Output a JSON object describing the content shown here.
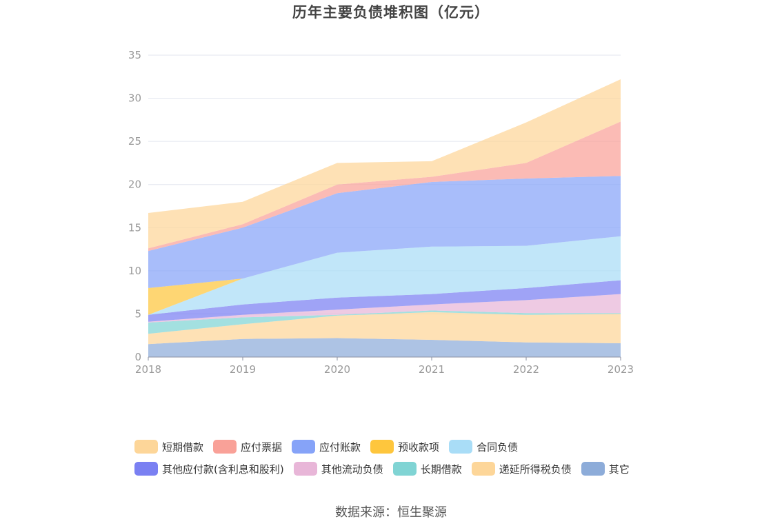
{
  "title": "历年主要负债堆积图（亿元）",
  "source": "数据来源：恒生聚源",
  "chart_data": {
    "type": "area",
    "stacked": true,
    "title": "历年主要负债堆积图（亿元）",
    "x": [
      "2018",
      "2019",
      "2020",
      "2021",
      "2022",
      "2023"
    ],
    "ylim": [
      0,
      35
    ],
    "yticks": [
      "0",
      "5",
      "10",
      "15",
      "20",
      "25",
      "30",
      "35"
    ],
    "grid": true,
    "legend_position": "bottom",
    "series": [
      {
        "name": "其它",
        "color": "#8dacd9",
        "values": [
          1.5,
          2.1,
          2.2,
          2.0,
          1.7,
          1.6
        ]
      },
      {
        "name": "递延所得税负债",
        "color": "#fdd699",
        "values": [
          1.2,
          1.7,
          2.6,
          3.2,
          3.2,
          3.4
        ]
      },
      {
        "name": "长期借款",
        "color": "#80d4d4",
        "values": [
          1.3,
          0.8,
          0.1,
          0.2,
          0.2,
          0.1
        ]
      },
      {
        "name": "其他流动负债",
        "color": "#e8b6d8",
        "values": [
          0.1,
          0.3,
          0.6,
          0.7,
          1.5,
          2.2
        ]
      },
      {
        "name": "其他应付款(含利息和股利)",
        "color": "#7a80f2",
        "values": [
          0.8,
          1.2,
          1.4,
          1.2,
          1.4,
          1.6
        ]
      },
      {
        "name": "合同负债",
        "color": "#a9ddf7",
        "values": [
          0.0,
          3.0,
          5.2,
          5.5,
          4.9,
          5.1
        ]
      },
      {
        "name": "预收款项",
        "color": "#fec63d",
        "values": [
          3.1,
          0.0,
          0.0,
          0.0,
          0.0,
          0.0
        ]
      },
      {
        "name": "应付账款",
        "color": "#86a3f8",
        "values": [
          4.3,
          5.9,
          6.9,
          7.5,
          7.8,
          7.0
        ]
      },
      {
        "name": "应付票据",
        "color": "#f9a198",
        "values": [
          0.3,
          0.4,
          1.0,
          0.6,
          1.8,
          6.3
        ]
      },
      {
        "name": "短期借款",
        "color": "#fdd699",
        "values": [
          4.1,
          2.6,
          2.5,
          1.8,
          4.7,
          4.9
        ]
      }
    ]
  },
  "legend": [
    [
      {
        "label": "短期借款",
        "color": "#fdd699"
      },
      {
        "label": "应付票据",
        "color": "#f9a198"
      },
      {
        "label": "应付账款",
        "color": "#86a3f8"
      },
      {
        "label": "预收款项",
        "color": "#fec63d"
      },
      {
        "label": "合同负债",
        "color": "#a9ddf7"
      }
    ],
    [
      {
        "label": "其他应付款(含利息和股利)",
        "color": "#7a80f2"
      },
      {
        "label": "其他流动负债",
        "color": "#e8b6d8"
      },
      {
        "label": "长期借款",
        "color": "#80d4d4"
      },
      {
        "label": "递延所得税负债",
        "color": "#fdd699"
      },
      {
        "label": "其它",
        "color": "#8dacd9"
      }
    ]
  ]
}
